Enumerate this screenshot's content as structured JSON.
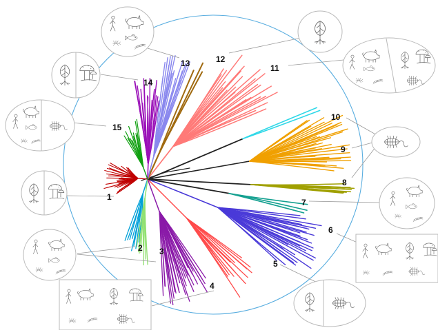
{
  "figure": {
    "clades": [
      {
        "id": "1",
        "color": "#c00000"
      },
      {
        "id": "2",
        "color": "#00a0d8"
      },
      {
        "id": "3",
        "color": "#90e070"
      },
      {
        "id": "4",
        "color": "#8a1aa8"
      },
      {
        "id": "5",
        "color": "#ff4a4a"
      },
      {
        "id": "6",
        "color": "#4a3ad8"
      },
      {
        "id": "7",
        "color": "#14a090"
      },
      {
        "id": "8",
        "color": "#a0a000"
      },
      {
        "id": "9",
        "color": "#f0a000"
      },
      {
        "id": "10",
        "color": "#30d8e8"
      },
      {
        "id": "11",
        "color": "#ff7a78"
      },
      {
        "id": "12",
        "color": "#a06a10"
      },
      {
        "id": "13",
        "color": "#8a88ee"
      },
      {
        "id": "14",
        "color": "#9a10b8"
      },
      {
        "id": "15",
        "color": "#10a010"
      }
    ],
    "circle_color": "#5aaee0",
    "icon_names": [
      "plant-icon",
      "mushroom-icon",
      "human-icon",
      "pig-icon",
      "fish-icon",
      "insect-icon",
      "worm-icon",
      "beetle-icon"
    ]
  }
}
